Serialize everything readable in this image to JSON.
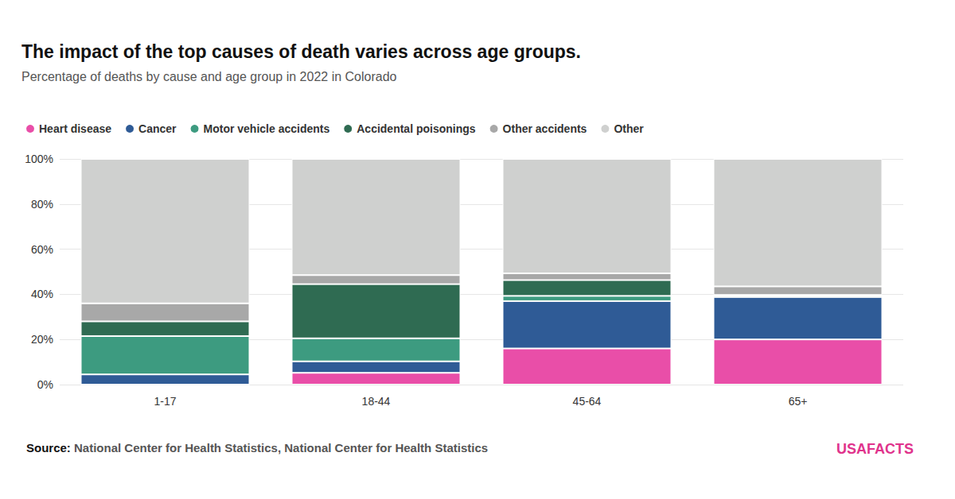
{
  "chart_data": {
    "type": "bar",
    "stacked": true,
    "title": "The impact of the top causes of death varies across age groups.",
    "subtitle": "Percentage of deaths by cause and age group in 2022 in Colorado",
    "source": "Source: National Center for Health Statistics, National Center for Health Statistics",
    "logo": "USAFACTS",
    "legend": "top-left",
    "grid": true,
    "categories": [
      "1-17",
      "18-44",
      "45-64",
      "65+"
    ],
    "series": [
      {
        "name": "Heart disease",
        "color": "#e94ea8",
        "values": [
          0,
          5.2,
          16,
          20
        ]
      },
      {
        "name": "Cancer",
        "color": "#2f5b96",
        "values": [
          4.5,
          5.1,
          21,
          18.8
        ]
      },
      {
        "name": "Motor vehicle accidents",
        "color": "#3d9b80",
        "values": [
          17,
          10.2,
          2.3,
          0.6
        ]
      },
      {
        "name": "Accidental poisonings",
        "color": "#2f6b52",
        "values": [
          6.5,
          24,
          7,
          0.3
        ]
      },
      {
        "name": "Other accidents",
        "color": "#a8a8a8",
        "values": [
          8,
          4,
          3,
          3.8
        ]
      },
      {
        "name": "Other",
        "color": "#cfd0cf",
        "values": [
          64,
          51.5,
          50.7,
          56.5
        ]
      }
    ],
    "ylim": [
      0,
      100
    ],
    "yticks": [
      {
        "value": 0,
        "label": "0%"
      },
      {
        "value": 20,
        "label": "20%"
      },
      {
        "value": 40,
        "label": "40%"
      },
      {
        "value": 60,
        "label": "60%"
      },
      {
        "value": 80,
        "label": "80%"
      },
      {
        "value": 100,
        "label": "100%"
      }
    ]
  }
}
